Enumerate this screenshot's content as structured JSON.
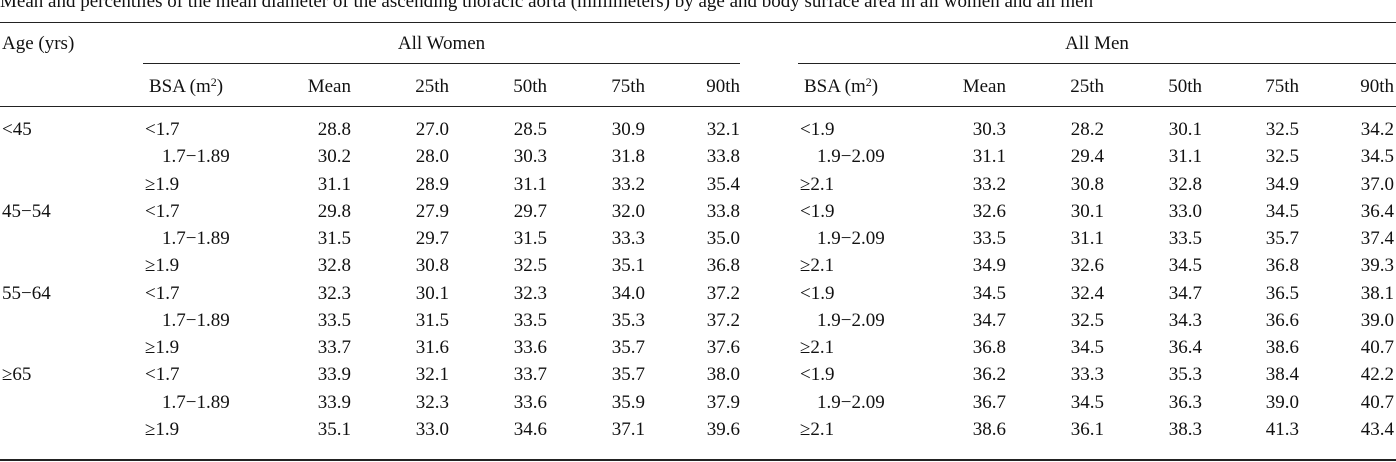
{
  "caption": "Mean and percentiles of the mean diameter of the ascending thoracic aorta (millimeters) by age and body surface area in all women and all men",
  "headers": {
    "age": "Age (yrs)",
    "women_group": "All Women",
    "men_group": "All Men",
    "bsa": "BSA (m",
    "bsa_sup": "2",
    "bsa_close": ")",
    "mean": "Mean",
    "p25": "25th",
    "p50": "50th",
    "p75": "75th",
    "p90": "90th"
  },
  "rows": [
    {
      "age": "<45",
      "w_bsa": "<1.7",
      "w": [
        "28.8",
        "27.0",
        "28.5",
        "30.9",
        "32.1"
      ],
      "m_bsa": "<1.9",
      "m": [
        "30.3",
        "28.2",
        "30.1",
        "32.5",
        "34.2"
      ]
    },
    {
      "age": "",
      "w_bsa": "1.7−1.89",
      "w": [
        "30.2",
        "28.0",
        "30.3",
        "31.8",
        "33.8"
      ],
      "m_bsa": "1.9−2.09",
      "m": [
        "31.1",
        "29.4",
        "31.1",
        "32.5",
        "34.5"
      ]
    },
    {
      "age": "",
      "w_bsa": "≥1.9",
      "w": [
        "31.1",
        "28.9",
        "31.1",
        "33.2",
        "35.4"
      ],
      "m_bsa": "≥2.1",
      "m": [
        "33.2",
        "30.8",
        "32.8",
        "34.9",
        "37.0"
      ]
    },
    {
      "age": "45−54",
      "w_bsa": "<1.7",
      "w": [
        "29.8",
        "27.9",
        "29.7",
        "32.0",
        "33.8"
      ],
      "m_bsa": "<1.9",
      "m": [
        "32.6",
        "30.1",
        "33.0",
        "34.5",
        "36.4"
      ]
    },
    {
      "age": "",
      "w_bsa": "1.7−1.89",
      "w": [
        "31.5",
        "29.7",
        "31.5",
        "33.3",
        "35.0"
      ],
      "m_bsa": "1.9−2.09",
      "m": [
        "33.5",
        "31.1",
        "33.5",
        "35.7",
        "37.4"
      ]
    },
    {
      "age": "",
      "w_bsa": "≥1.9",
      "w": [
        "32.8",
        "30.8",
        "32.5",
        "35.1",
        "36.8"
      ],
      "m_bsa": "≥2.1",
      "m": [
        "34.9",
        "32.6",
        "34.5",
        "36.8",
        "39.3"
      ]
    },
    {
      "age": "55−64",
      "w_bsa": "<1.7",
      "w": [
        "32.3",
        "30.1",
        "32.3",
        "34.0",
        "37.2"
      ],
      "m_bsa": "<1.9",
      "m": [
        "34.5",
        "32.4",
        "34.7",
        "36.5",
        "38.1"
      ]
    },
    {
      "age": "",
      "w_bsa": "1.7−1.89",
      "w": [
        "33.5",
        "31.5",
        "33.5",
        "35.3",
        "37.2"
      ],
      "m_bsa": "1.9−2.09",
      "m": [
        "34.7",
        "32.5",
        "34.3",
        "36.6",
        "39.0"
      ]
    },
    {
      "age": "",
      "w_bsa": "≥1.9",
      "w": [
        "33.7",
        "31.6",
        "33.6",
        "35.7",
        "37.6"
      ],
      "m_bsa": "≥2.1",
      "m": [
        "36.8",
        "34.5",
        "36.4",
        "38.6",
        "40.7"
      ]
    },
    {
      "age": "≥65",
      "w_bsa": "<1.7",
      "w": [
        "33.9",
        "32.1",
        "33.7",
        "35.7",
        "38.0"
      ],
      "m_bsa": "<1.9",
      "m": [
        "36.2",
        "33.3",
        "35.3",
        "38.4",
        "42.2"
      ]
    },
    {
      "age": "",
      "w_bsa": "1.7−1.89",
      "w": [
        "33.9",
        "32.3",
        "33.6",
        "35.9",
        "37.9"
      ],
      "m_bsa": "1.9−2.09",
      "m": [
        "36.7",
        "34.5",
        "36.3",
        "39.0",
        "40.7"
      ]
    },
    {
      "age": "",
      "w_bsa": "≥1.9",
      "w": [
        "35.1",
        "33.0",
        "34.6",
        "37.1",
        "39.6"
      ],
      "m_bsa": "≥2.1",
      "m": [
        "38.6",
        "36.1",
        "38.3",
        "41.3",
        "43.4"
      ]
    }
  ]
}
